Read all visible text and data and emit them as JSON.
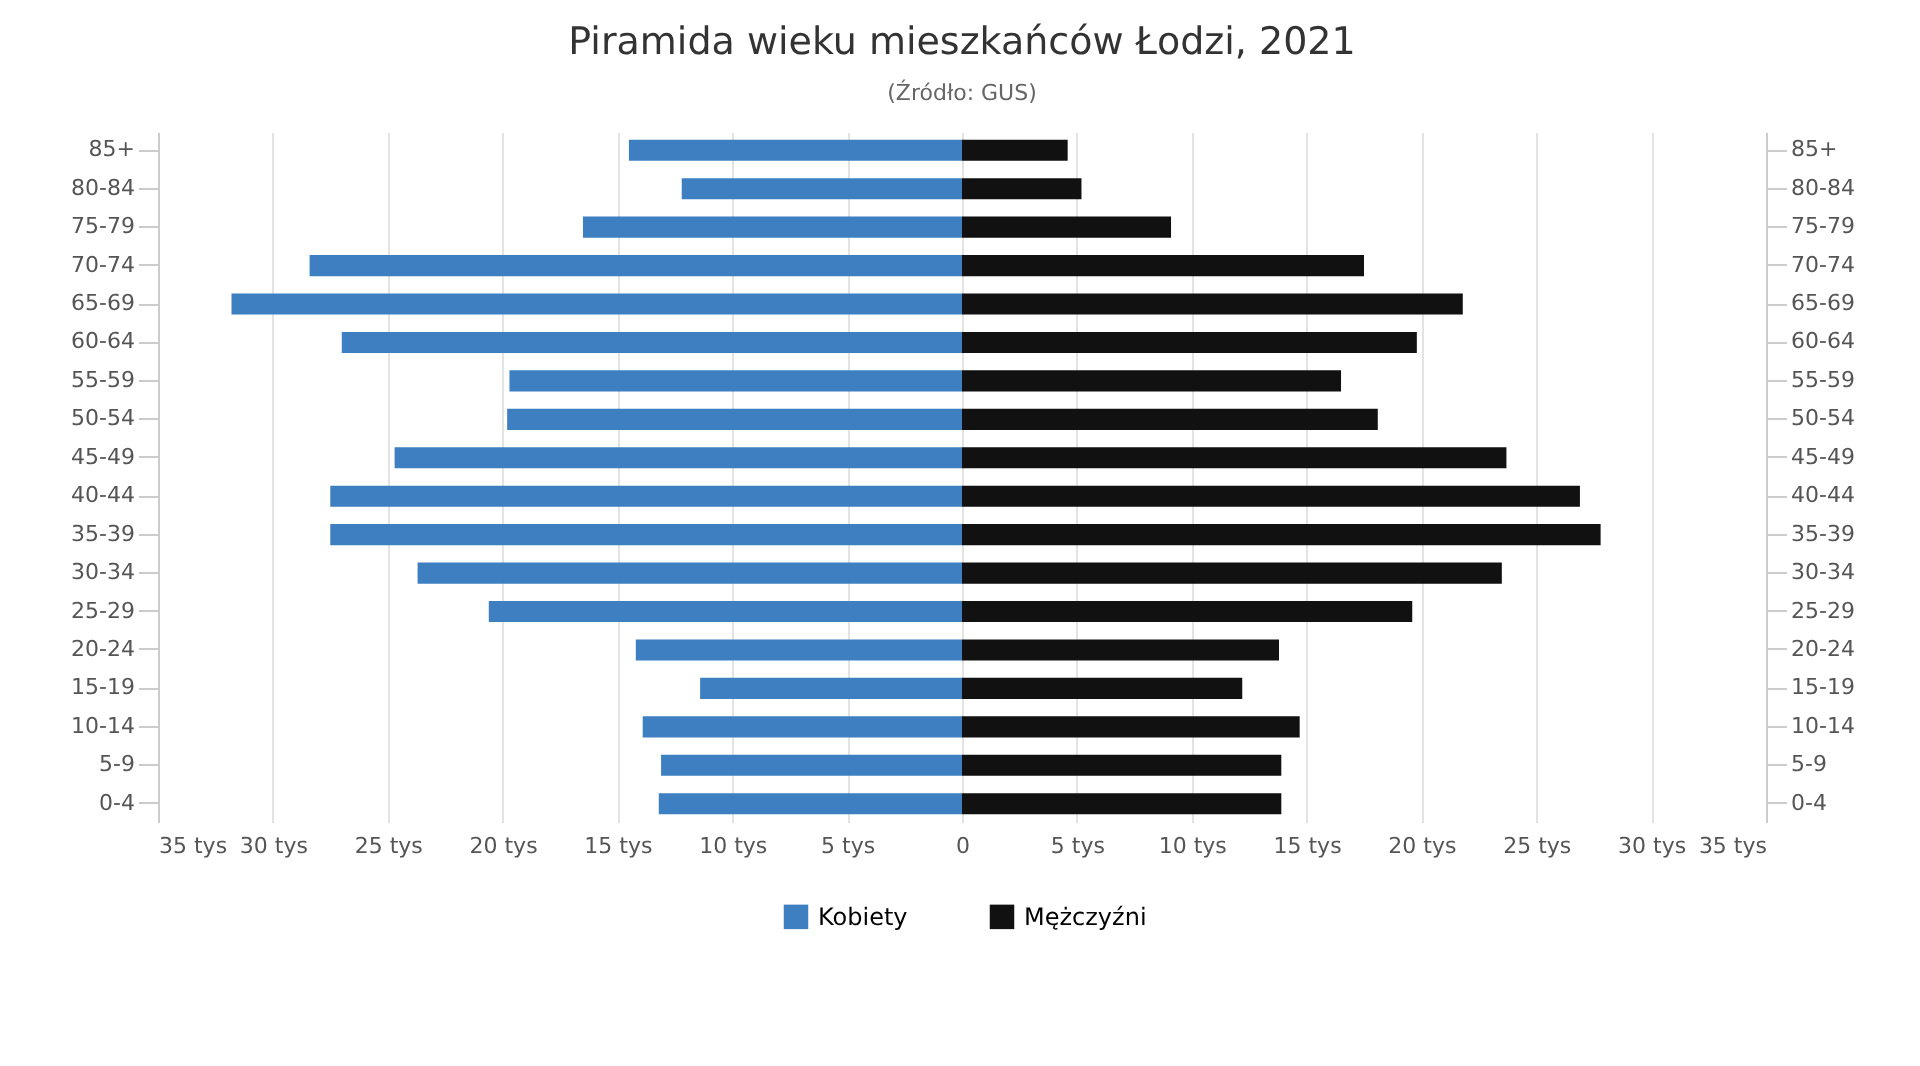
{
  "chart_data": {
    "type": "bar",
    "orientation": "horizontal",
    "title": "Piramida wieku mieszkańców Łodzi, 2021",
    "subtitle": "(Źródło: GUS)",
    "categories": [
      "85+",
      "80-84",
      "75-79",
      "70-74",
      "65-69",
      "60-64",
      "55-59",
      "50-54",
      "45-49",
      "40-44",
      "35-39",
      "30-34",
      "25-29",
      "20-24",
      "15-19",
      "10-14",
      "5-9",
      "0-4"
    ],
    "series": [
      {
        "name": "Kobiety",
        "color": "#3d7fc1",
        "values": [
          -14.5,
          -12.2,
          -16.5,
          -28.4,
          -31.8,
          -27.0,
          -19.7,
          -19.8,
          -24.7,
          -27.5,
          -27.5,
          -23.7,
          -20.6,
          -14.2,
          -11.4,
          -13.9,
          -13.1,
          -13.2
        ]
      },
      {
        "name": "Mężczyźni",
        "color": "#111111",
        "values": [
          4.6,
          5.2,
          9.1,
          17.5,
          21.8,
          19.8,
          16.5,
          18.1,
          23.7,
          26.9,
          27.8,
          23.5,
          19.6,
          13.8,
          12.2,
          14.7,
          13.9,
          13.9
        ]
      }
    ],
    "xlim": [
      -35,
      35
    ],
    "xticks": [
      {
        "value": -35,
        "label": "35 tys"
      },
      {
        "value": -30,
        "label": "30 tys"
      },
      {
        "value": -25,
        "label": "25 tys"
      },
      {
        "value": -20,
        "label": "20 tys"
      },
      {
        "value": -15,
        "label": "15 tys"
      },
      {
        "value": -10,
        "label": "10 tys"
      },
      {
        "value": -5,
        "label": "5 tys"
      },
      0,
      {
        "value": 5,
        "label": "5 tys"
      },
      {
        "value": 10,
        "label": "10 tys"
      },
      {
        "value": 15,
        "label": "15 tys"
      },
      {
        "value": 20,
        "label": "20 tys"
      },
      {
        "value": 25,
        "label": "25 tys"
      },
      {
        "value": 30,
        "label": "30 tys"
      },
      {
        "value": 35,
        "label": "35 tys"
      }
    ],
    "grid": "x",
    "legend": "bottom",
    "stacked": true
  }
}
